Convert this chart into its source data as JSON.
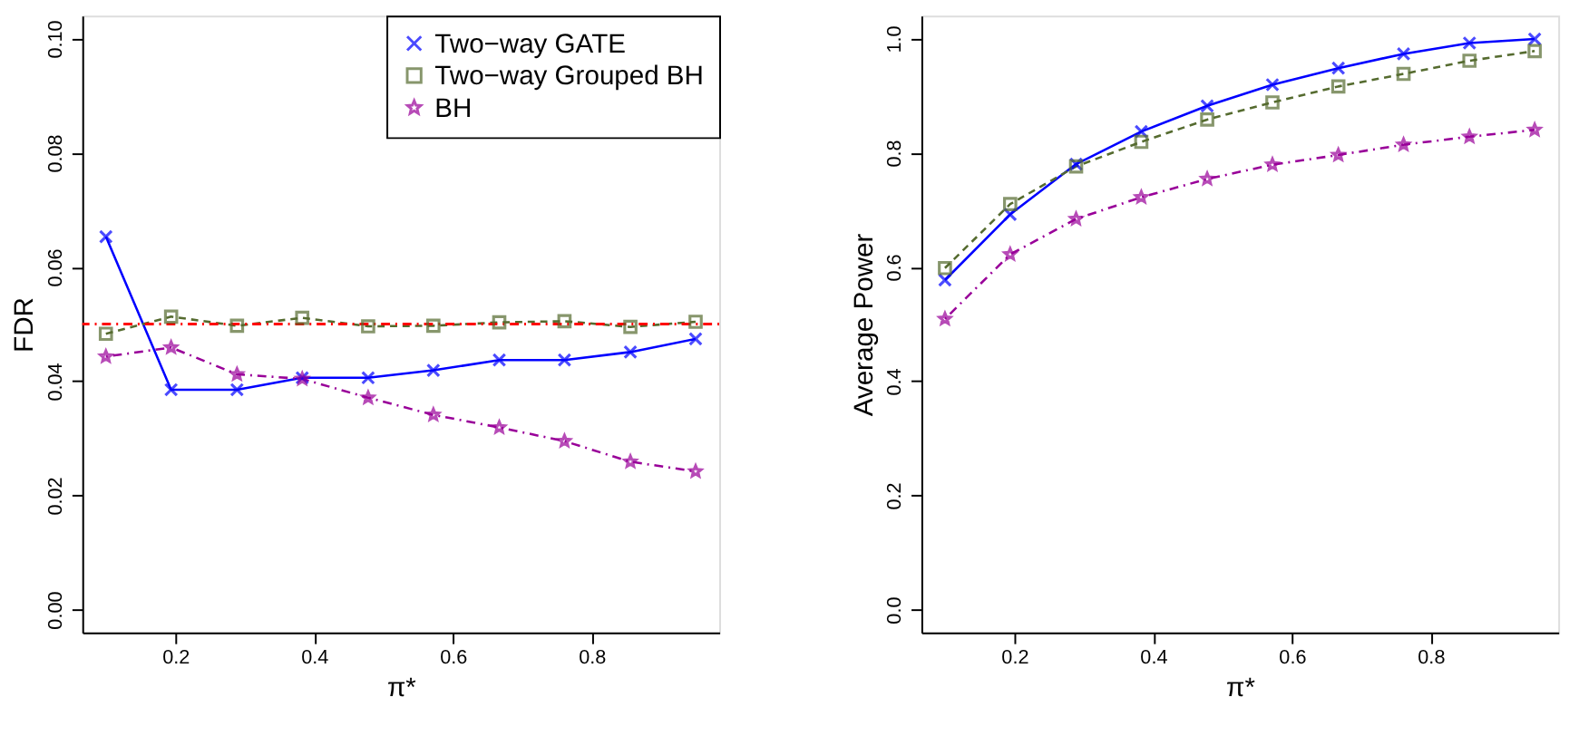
{
  "chart_data": [
    {
      "type": "line",
      "xlabel": "π*",
      "ylabel": "FDR",
      "xlim": [
        0.066,
        0.984
      ],
      "ylim": [
        -0.004,
        0.104
      ],
      "xticks": [
        0.2,
        0.4,
        0.6,
        0.8
      ],
      "yticks": [
        {
          "value": 0,
          "label": "0.00"
        },
        0.02,
        0.04,
        0.06,
        0.08,
        {
          "value": 0.1,
          "label": "0.10"
        }
      ],
      "grid": false,
      "legend": "top right",
      "x": [
        0.1,
        0.194,
        0.289,
        0.383,
        0.478,
        0.572,
        0.667,
        0.761,
        0.856,
        0.95
      ],
      "series": [
        {
          "name": "Two−way GATE",
          "color": "#0000ff",
          "marker": "cross",
          "line_style": "solid",
          "values": [
            0.0653,
            0.0385,
            0.0385,
            0.0406,
            0.0406,
            0.0419,
            0.0437,
            0.0437,
            0.0451,
            0.0474
          ]
        },
        {
          "name": "Two−way Grouped BH",
          "color": "#556b2f",
          "marker": "square",
          "line_style": "dashed",
          "values": [
            0.0483,
            0.0513,
            0.0497,
            0.0511,
            0.0496,
            0.0497,
            0.0503,
            0.0505,
            0.0495,
            0.0504
          ]
        },
        {
          "name": "BH",
          "color": "#990099",
          "marker": "star",
          "line_style": "dotted",
          "values": [
            0.0443,
            0.0459,
            0.0412,
            0.0404,
            0.0371,
            0.0341,
            0.0319,
            0.0295,
            0.0259,
            0.0242
          ]
        }
      ],
      "ref_lines": [
        {
          "axis": "y",
          "value": 0.05,
          "color": "#ff0000",
          "line_style": "dotted"
        }
      ]
    },
    {
      "type": "line",
      "xlabel": "π*",
      "ylabel": "Average Power",
      "xlim": [
        0.066,
        0.984
      ],
      "ylim": [
        -0.04,
        1.04
      ],
      "xticks": [
        0.2,
        0.4,
        0.6,
        0.8
      ],
      "yticks": [
        {
          "value": 0,
          "label": "0.0"
        },
        0.2,
        0.4,
        0.6,
        0.8,
        {
          "value": 1,
          "label": "1.0"
        }
      ],
      "grid": false,
      "legend": false,
      "x": [
        0.1,
        0.194,
        0.289,
        0.383,
        0.478,
        0.572,
        0.667,
        0.761,
        0.856,
        0.95
      ],
      "series": [
        {
          "color": "#0000ff",
          "marker": "cross",
          "line_style": "solid",
          "values": [
            0.577,
            0.692,
            0.78,
            0.837,
            0.882,
            0.919,
            0.948,
            0.973,
            0.992,
            0.999
          ]
        },
        {
          "color": "#556b2f",
          "marker": "square",
          "line_style": "dashed",
          "values": [
            0.598,
            0.71,
            0.776,
            0.819,
            0.858,
            0.888,
            0.916,
            0.938,
            0.961,
            0.978
          ]
        },
        {
          "color": "#990099",
          "marker": "star",
          "line_style": "dotted",
          "values": [
            0.509,
            0.622,
            0.684,
            0.722,
            0.754,
            0.779,
            0.796,
            0.814,
            0.828,
            0.84
          ]
        }
      ]
    }
  ]
}
